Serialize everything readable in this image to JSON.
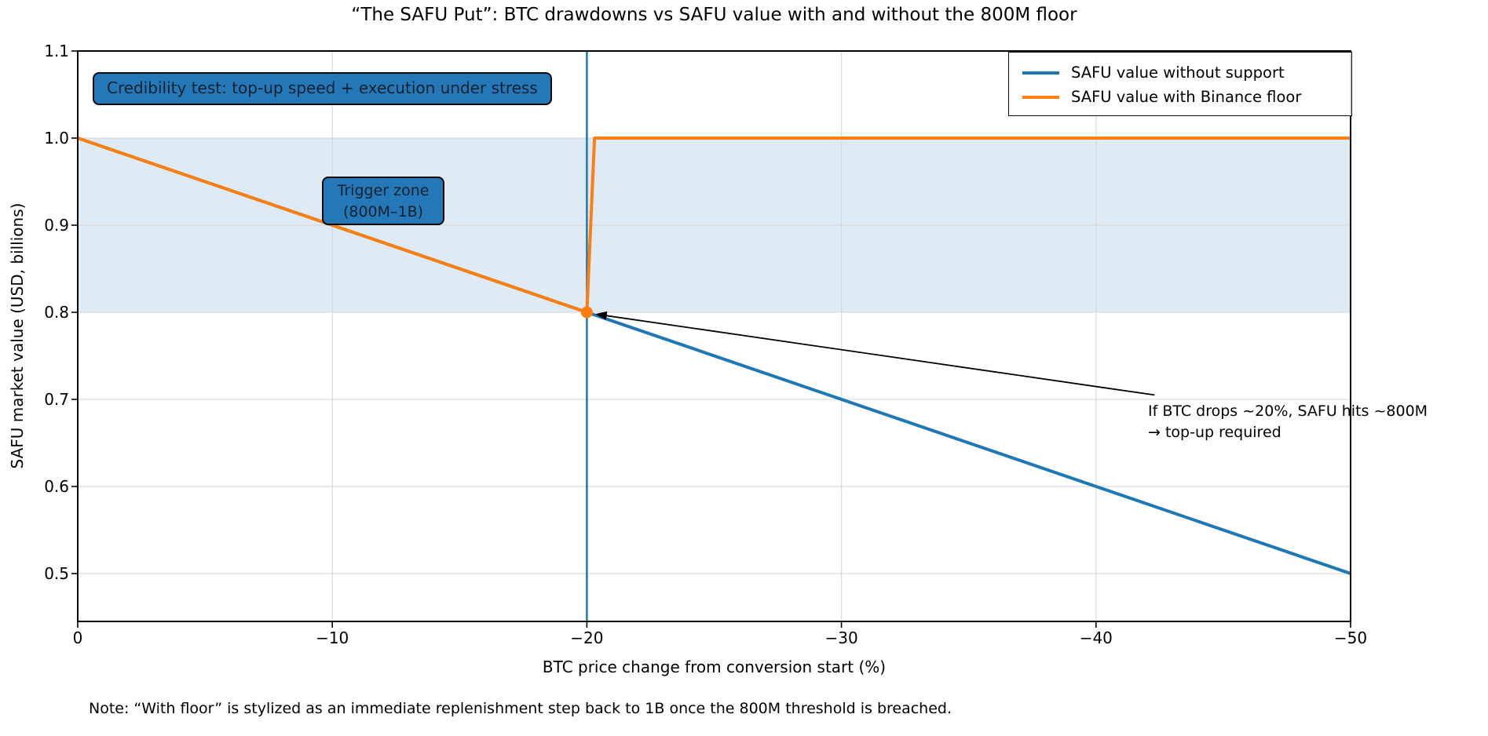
{
  "title": "“The SAFU Put”: BTC drawdowns vs SAFU value with and without the 800M floor",
  "note": "Note: “With floor” is stylized as an immediate replenishment step back to 1B once the 800M threshold is breached.",
  "colors": {
    "blue": "#1f77b4",
    "orange": "#ff7f0e",
    "band_fill": "rgba(31,119,180,0.15)",
    "grid": "#d4d4d4",
    "spine": "#000000",
    "box_fill": "#2478b7",
    "box_text": "#0d2130",
    "arrow": "#000000"
  },
  "chart_data": {
    "type": "line",
    "title": "“The SAFU Put”: BTC drawdowns vs SAFU value with and without the 800M floor",
    "xlabel": "BTC price change from conversion start (%)",
    "ylabel": "SAFU market value (USD, billions)",
    "xlim": [
      0,
      -50
    ],
    "ylim": [
      0.445,
      1.1
    ],
    "x_ticks": [
      0,
      -10,
      -20,
      -30,
      -40,
      -50
    ],
    "x_tick_labels": [
      "0",
      "−10",
      "−20",
      "−30",
      "−40",
      "−50"
    ],
    "y_ticks": [
      0.5,
      0.6,
      0.7,
      0.8,
      0.9,
      1.0,
      1.1
    ],
    "y_tick_labels": [
      "0.5",
      "0.6",
      "0.7",
      "0.8",
      "0.9",
      "1.0",
      "1.1"
    ],
    "grid": true,
    "legend_position": "upper right",
    "series": [
      {
        "name": "SAFU value without support",
        "color": "#1f77b4",
        "width": 4,
        "points": [
          [
            0,
            1.0
          ],
          [
            -20,
            0.8
          ],
          [
            -50,
            0.5
          ]
        ]
      },
      {
        "name": "SAFU value with Binance floor",
        "color": "#ff7f0e",
        "width": 4,
        "points": [
          [
            0,
            1.0
          ],
          [
            -20,
            0.8
          ],
          [
            -20.3,
            1.0
          ],
          [
            -50,
            1.0
          ]
        ]
      }
    ],
    "marker": {
      "x": -20,
      "y": 0.8,
      "color": "#ff7f0e",
      "radius": 7.5
    },
    "vline": {
      "x": -20,
      "color": "#1f77b4",
      "width": 2.5
    },
    "band": {
      "y0": 0.8,
      "y1": 1.0,
      "meaning": "Trigger zone (800M–1B)"
    },
    "annotations": {
      "credibility_box": "Credibility test: top-up speed + execution under stress",
      "trigger_box_line1": "Trigger zone",
      "trigger_box_line2": "(800M–1B)",
      "arrow_note_line1": "If BTC drops ~20%, SAFU hits ~800M",
      "arrow_note_line2": "→ top-up required",
      "arrow": {
        "from_x": -42.3,
        "from_y": 0.705,
        "to_x": -20.32,
        "to_y": 0.798
      }
    }
  },
  "legend": {
    "items": [
      {
        "label": "SAFU value without support",
        "color": "#1f77b4"
      },
      {
        "label": "SAFU value with Binance floor",
        "color": "#ff7f0e"
      }
    ]
  }
}
